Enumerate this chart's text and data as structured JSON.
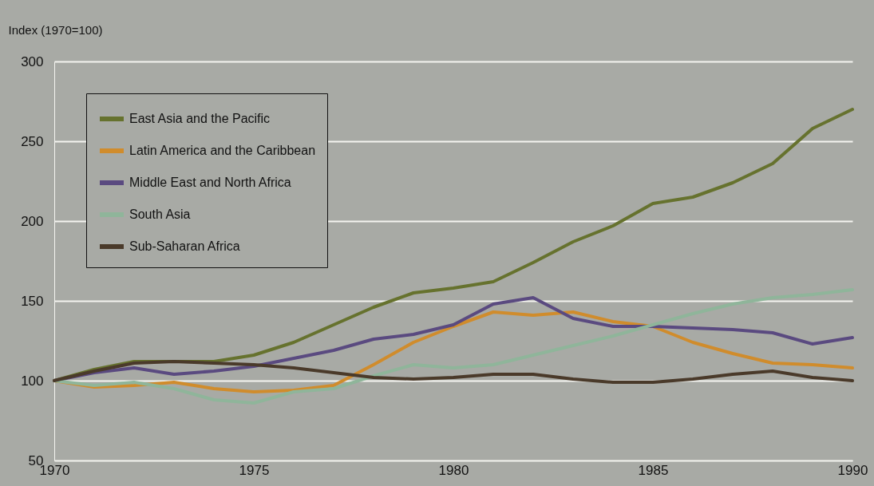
{
  "chart_data": {
    "type": "line",
    "ylabel": "Index (1970=100)",
    "x": [
      1970,
      1971,
      1972,
      1973,
      1974,
      1975,
      1976,
      1977,
      1978,
      1979,
      1980,
      1981,
      1982,
      1983,
      1984,
      1985,
      1986,
      1987,
      1988,
      1989,
      1990
    ],
    "xlim": [
      1970,
      1990
    ],
    "xticks": [
      1970,
      1975,
      1980,
      1985,
      1990
    ],
    "ylim": [
      50,
      300
    ],
    "yticks": [
      50,
      100,
      150,
      200,
      250,
      300
    ],
    "grid": "y",
    "legend": "top left",
    "line_style": "solid",
    "series": [
      {
        "name": "East Asia and the Pacific",
        "color": "#66722e",
        "values": [
          100,
          107,
          112,
          112,
          112,
          116,
          124,
          135,
          146,
          155,
          158,
          162,
          174,
          187,
          197,
          211,
          215,
          224,
          236,
          258,
          270
        ]
      },
      {
        "name": "Latin America and the Caribbean",
        "color": "#d08c2c",
        "values": [
          100,
          96,
          97,
          99,
          95,
          93,
          94,
          97,
          110,
          124,
          134,
          143,
          141,
          143,
          137,
          134,
          124,
          117,
          111,
          110,
          108
        ]
      },
      {
        "name": "Middle East and North Africa",
        "color": "#5a4a80",
        "values": [
          100,
          105,
          108,
          104,
          106,
          109,
          114,
          119,
          126,
          129,
          135,
          148,
          152,
          139,
          134,
          134,
          133,
          132,
          130,
          123,
          127
        ]
      },
      {
        "name": "South Asia",
        "color": "#8fb59a",
        "values": [
          100,
          97,
          99,
          95,
          88,
          86,
          93,
          95,
          103,
          110,
          108,
          110,
          116,
          122,
          128,
          135,
          142,
          148,
          152,
          154,
          157
        ]
      },
      {
        "name": "Sub-Saharan Africa",
        "color": "#4a3a2a",
        "values": [
          100,
          106,
          111,
          112,
          111,
          110,
          108,
          105,
          102,
          101,
          102,
          104,
          104,
          101,
          99,
          99,
          101,
          104,
          106,
          102,
          100
        ]
      }
    ]
  }
}
